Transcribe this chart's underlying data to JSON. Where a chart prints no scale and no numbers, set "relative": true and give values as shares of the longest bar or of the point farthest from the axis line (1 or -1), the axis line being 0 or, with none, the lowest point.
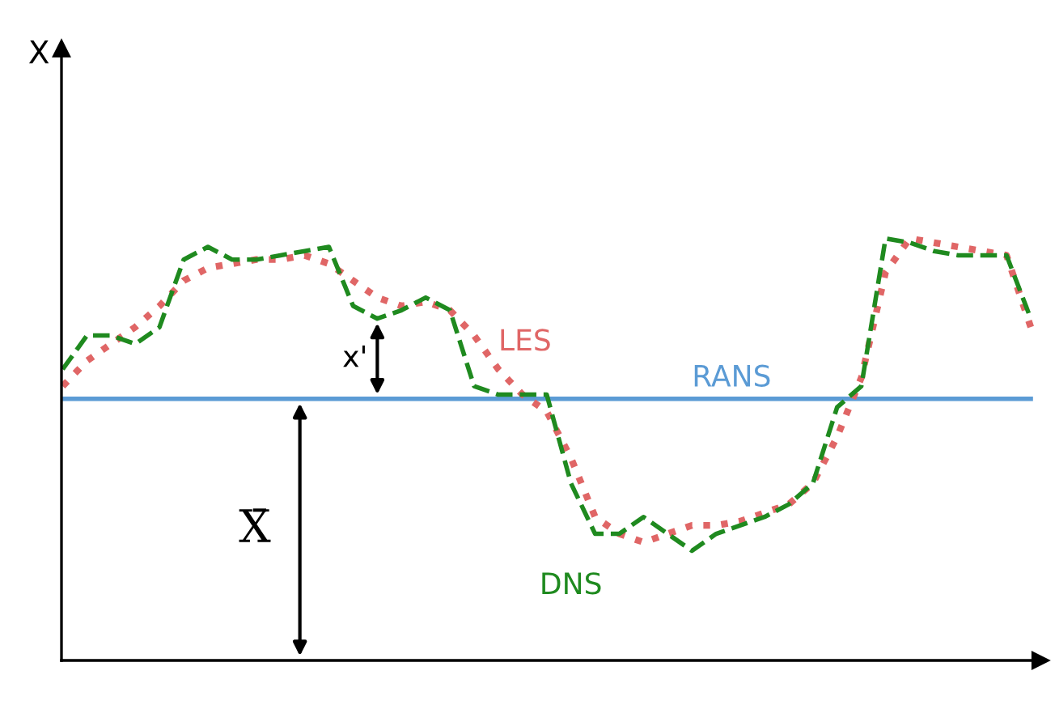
{
  "chart_data": {
    "type": "line",
    "relative": true,
    "legend": false,
    "categories": [
      null,
      null,
      null,
      null,
      null,
      null,
      null,
      null,
      null,
      null,
      null,
      null,
      null,
      null,
      null,
      null,
      null,
      null,
      null,
      null,
      null,
      null,
      null,
      null,
      null,
      null,
      null,
      null,
      null,
      null,
      null,
      null,
      null,
      null,
      null,
      null,
      null,
      null,
      null,
      null,
      null
    ],
    "series": [
      {
        "name": "RANS",
        "color": "#5b9bd5",
        "line_style": "solid",
        "values": [
          0.62,
          0.62,
          0.62,
          0.62,
          0.62,
          0.62,
          0.62,
          0.62,
          0.62,
          0.62,
          0.62,
          0.62,
          0.62,
          0.62,
          0.62,
          0.62,
          0.62,
          0.62,
          0.62,
          0.62,
          0.62,
          0.62,
          0.62,
          0.62,
          0.62,
          0.62,
          0.62,
          0.62,
          0.62,
          0.62,
          0.62,
          0.62,
          0.62,
          0.62,
          0.62,
          0.62,
          0.62,
          0.62,
          0.62,
          0.62,
          0.62
        ]
      },
      {
        "name": "LES",
        "color": "#e06666",
        "line_style": "dotted",
        "values": [
          0.65,
          0.71,
          0.75,
          0.79,
          0.84,
          0.9,
          0.93,
          0.94,
          0.95,
          0.95,
          0.96,
          0.94,
          0.9,
          0.86,
          0.84,
          0.85,
          0.83,
          0.77,
          0.69,
          0.63,
          0.59,
          0.48,
          0.34,
          0.3,
          0.28,
          0.3,
          0.32,
          0.32,
          0.33,
          0.35,
          0.37,
          0.42,
          0.53,
          0.67,
          0.92,
          1.0,
          0.99,
          0.98,
          0.97,
          0.96,
          0.79
        ]
      },
      {
        "name": "DNS",
        "color": "#1f8a1f",
        "line_style": "dashed",
        "values": [
          0.69,
          0.77,
          0.77,
          0.75,
          0.79,
          0.95,
          0.98,
          0.95,
          0.95,
          0.96,
          0.97,
          0.98,
          0.84,
          0.81,
          0.83,
          0.86,
          0.83,
          0.65,
          0.63,
          0.63,
          0.63,
          0.42,
          0.3,
          0.3,
          0.34,
          0.3,
          0.26,
          0.3,
          0.32,
          0.34,
          0.37,
          0.42,
          0.6,
          0.65,
          1.0,
          0.99,
          0.97,
          0.96,
          0.96,
          0.96,
          0.81
        ]
      }
    ],
    "annotations": [
      "X",
      "x'",
      "X̄"
    ]
  }
}
